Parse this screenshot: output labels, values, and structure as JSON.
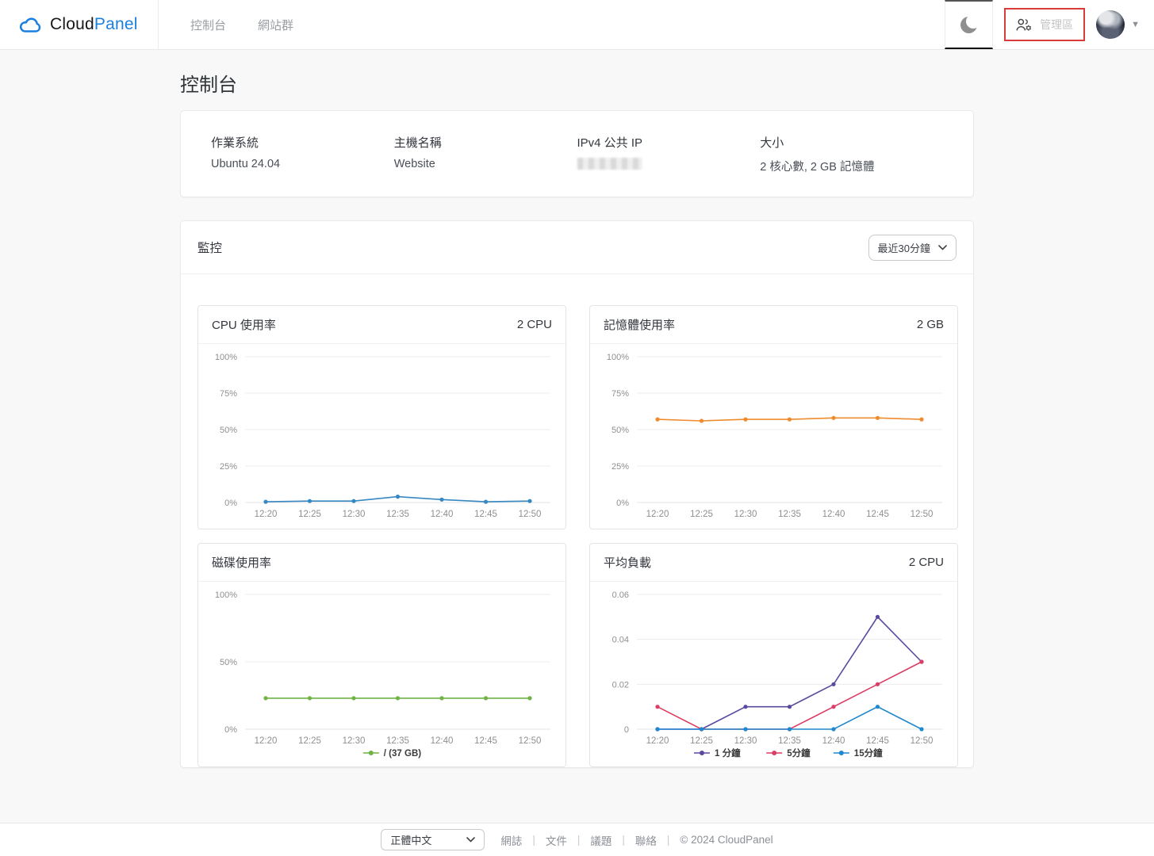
{
  "navbar": {
    "brand": {
      "cloud": "Cloud",
      "panel": "Panel"
    },
    "links": [
      {
        "label": "控制台"
      },
      {
        "label": "網站群"
      }
    ],
    "admin_button": {
      "label": "管理區"
    }
  },
  "icons": {
    "logo": "cloud-icon",
    "theme_toggle": "crescent-moon-icon",
    "admin": "users-gear-icon",
    "user_caret": "chevron-down-icon",
    "select": "chevron-down-icon"
  },
  "colors": {
    "brand_blue": "#1b7fe0",
    "annotation_red": "#d93a3a",
    "cpu_line": "#3688c3",
    "memory_line": "#ef8b2c",
    "disk_line": "#6fb344",
    "load_1m": "#5b49a0",
    "load_5m": "#dc3d64",
    "load_15m": "#1e88d0"
  },
  "page": {
    "title": "控制台"
  },
  "info_card": {
    "items": [
      {
        "label": "作業系統",
        "value": "Ubuntu 24.04"
      },
      {
        "label": "主機名稱",
        "value": "Website"
      },
      {
        "label": "IPv4 公共 IP",
        "value": "",
        "redacted": true
      },
      {
        "label": "大小",
        "value": "2 核心數, 2 GB 記憶體"
      }
    ]
  },
  "monitoring": {
    "title": "監控",
    "range_selector": {
      "value": "最近30分鐘"
    }
  },
  "chart_data": [
    {
      "type": "line",
      "title": "CPU 使用率",
      "right_label": "2 CPU",
      "x": [
        "12:20",
        "12:25",
        "12:30",
        "12:35",
        "12:40",
        "12:45",
        "12:50"
      ],
      "ylim": [
        0,
        100
      ],
      "y_ticks": [
        {
          "value": 100,
          "label": "100%"
        },
        {
          "value": 75,
          "label": "75%"
        },
        {
          "value": 50,
          "label": "50%"
        },
        {
          "value": 25,
          "label": "25%"
        },
        {
          "value": 0,
          "label": "0%"
        }
      ],
      "grid": true,
      "legend_visible": false,
      "series": [
        {
          "name": "CPU",
          "color": "#3688c3",
          "values": [
            0.5,
            1,
            1,
            4,
            2,
            0.5,
            1
          ]
        }
      ]
    },
    {
      "type": "line",
      "title": "記憶體使用率",
      "right_label": "2 GB",
      "x": [
        "12:20",
        "12:25",
        "12:30",
        "12:35",
        "12:40",
        "12:45",
        "12:50"
      ],
      "ylim": [
        0,
        100
      ],
      "y_ticks": [
        {
          "value": 100,
          "label": "100%"
        },
        {
          "value": 75,
          "label": "75%"
        },
        {
          "value": 50,
          "label": "50%"
        },
        {
          "value": 25,
          "label": "25%"
        },
        {
          "value": 0,
          "label": "0%"
        }
      ],
      "grid": true,
      "legend_visible": false,
      "series": [
        {
          "name": "Memory",
          "color": "#ef8b2c",
          "values": [
            57,
            56,
            57,
            57,
            58,
            58,
            57
          ]
        }
      ]
    },
    {
      "type": "line",
      "title": "磁碟使用率",
      "right_label": "",
      "x": [
        "12:20",
        "12:25",
        "12:30",
        "12:35",
        "12:40",
        "12:45",
        "12:50"
      ],
      "ylim": [
        0,
        100
      ],
      "y_ticks": [
        {
          "value": 100,
          "label": "100%"
        },
        {
          "value": 50,
          "label": "50%"
        },
        {
          "value": 0,
          "label": "0%"
        }
      ],
      "grid": true,
      "legend_visible": true,
      "series": [
        {
          "name": "/ (37 GB)",
          "color": "#6fb344",
          "values": [
            23,
            23,
            23,
            23,
            23,
            23,
            23
          ]
        }
      ]
    },
    {
      "type": "line",
      "title": "平均負載",
      "right_label": "2 CPU",
      "x": [
        "12:20",
        "12:25",
        "12:30",
        "12:35",
        "12:40",
        "12:45",
        "12:50"
      ],
      "ylim": [
        0,
        0.06
      ],
      "y_ticks": [
        {
          "value": 0.06,
          "label": "0.06"
        },
        {
          "value": 0.04,
          "label": "0.04"
        },
        {
          "value": 0.02,
          "label": "0.02"
        },
        {
          "value": 0,
          "label": "0"
        }
      ],
      "grid": true,
      "legend_visible": true,
      "series": [
        {
          "name": "1 分鐘",
          "color": "#5b49a0",
          "values": [
            0,
            0,
            0.01,
            0.01,
            0.02,
            0.05,
            0.03
          ]
        },
        {
          "name": "5分鐘",
          "color": "#dc3d64",
          "values": [
            0.01,
            0,
            0,
            0,
            0.01,
            0.02,
            0.03
          ]
        },
        {
          "name": "15分鐘",
          "color": "#1e88d0",
          "values": [
            0,
            0,
            0,
            0,
            0,
            0.01,
            0
          ]
        }
      ]
    }
  ],
  "footer": {
    "language_selector": {
      "value": "正體中文"
    },
    "links": [
      "網誌",
      "文件",
      "議題",
      "聯絡"
    ],
    "copyright": "© 2024  CloudPanel"
  }
}
